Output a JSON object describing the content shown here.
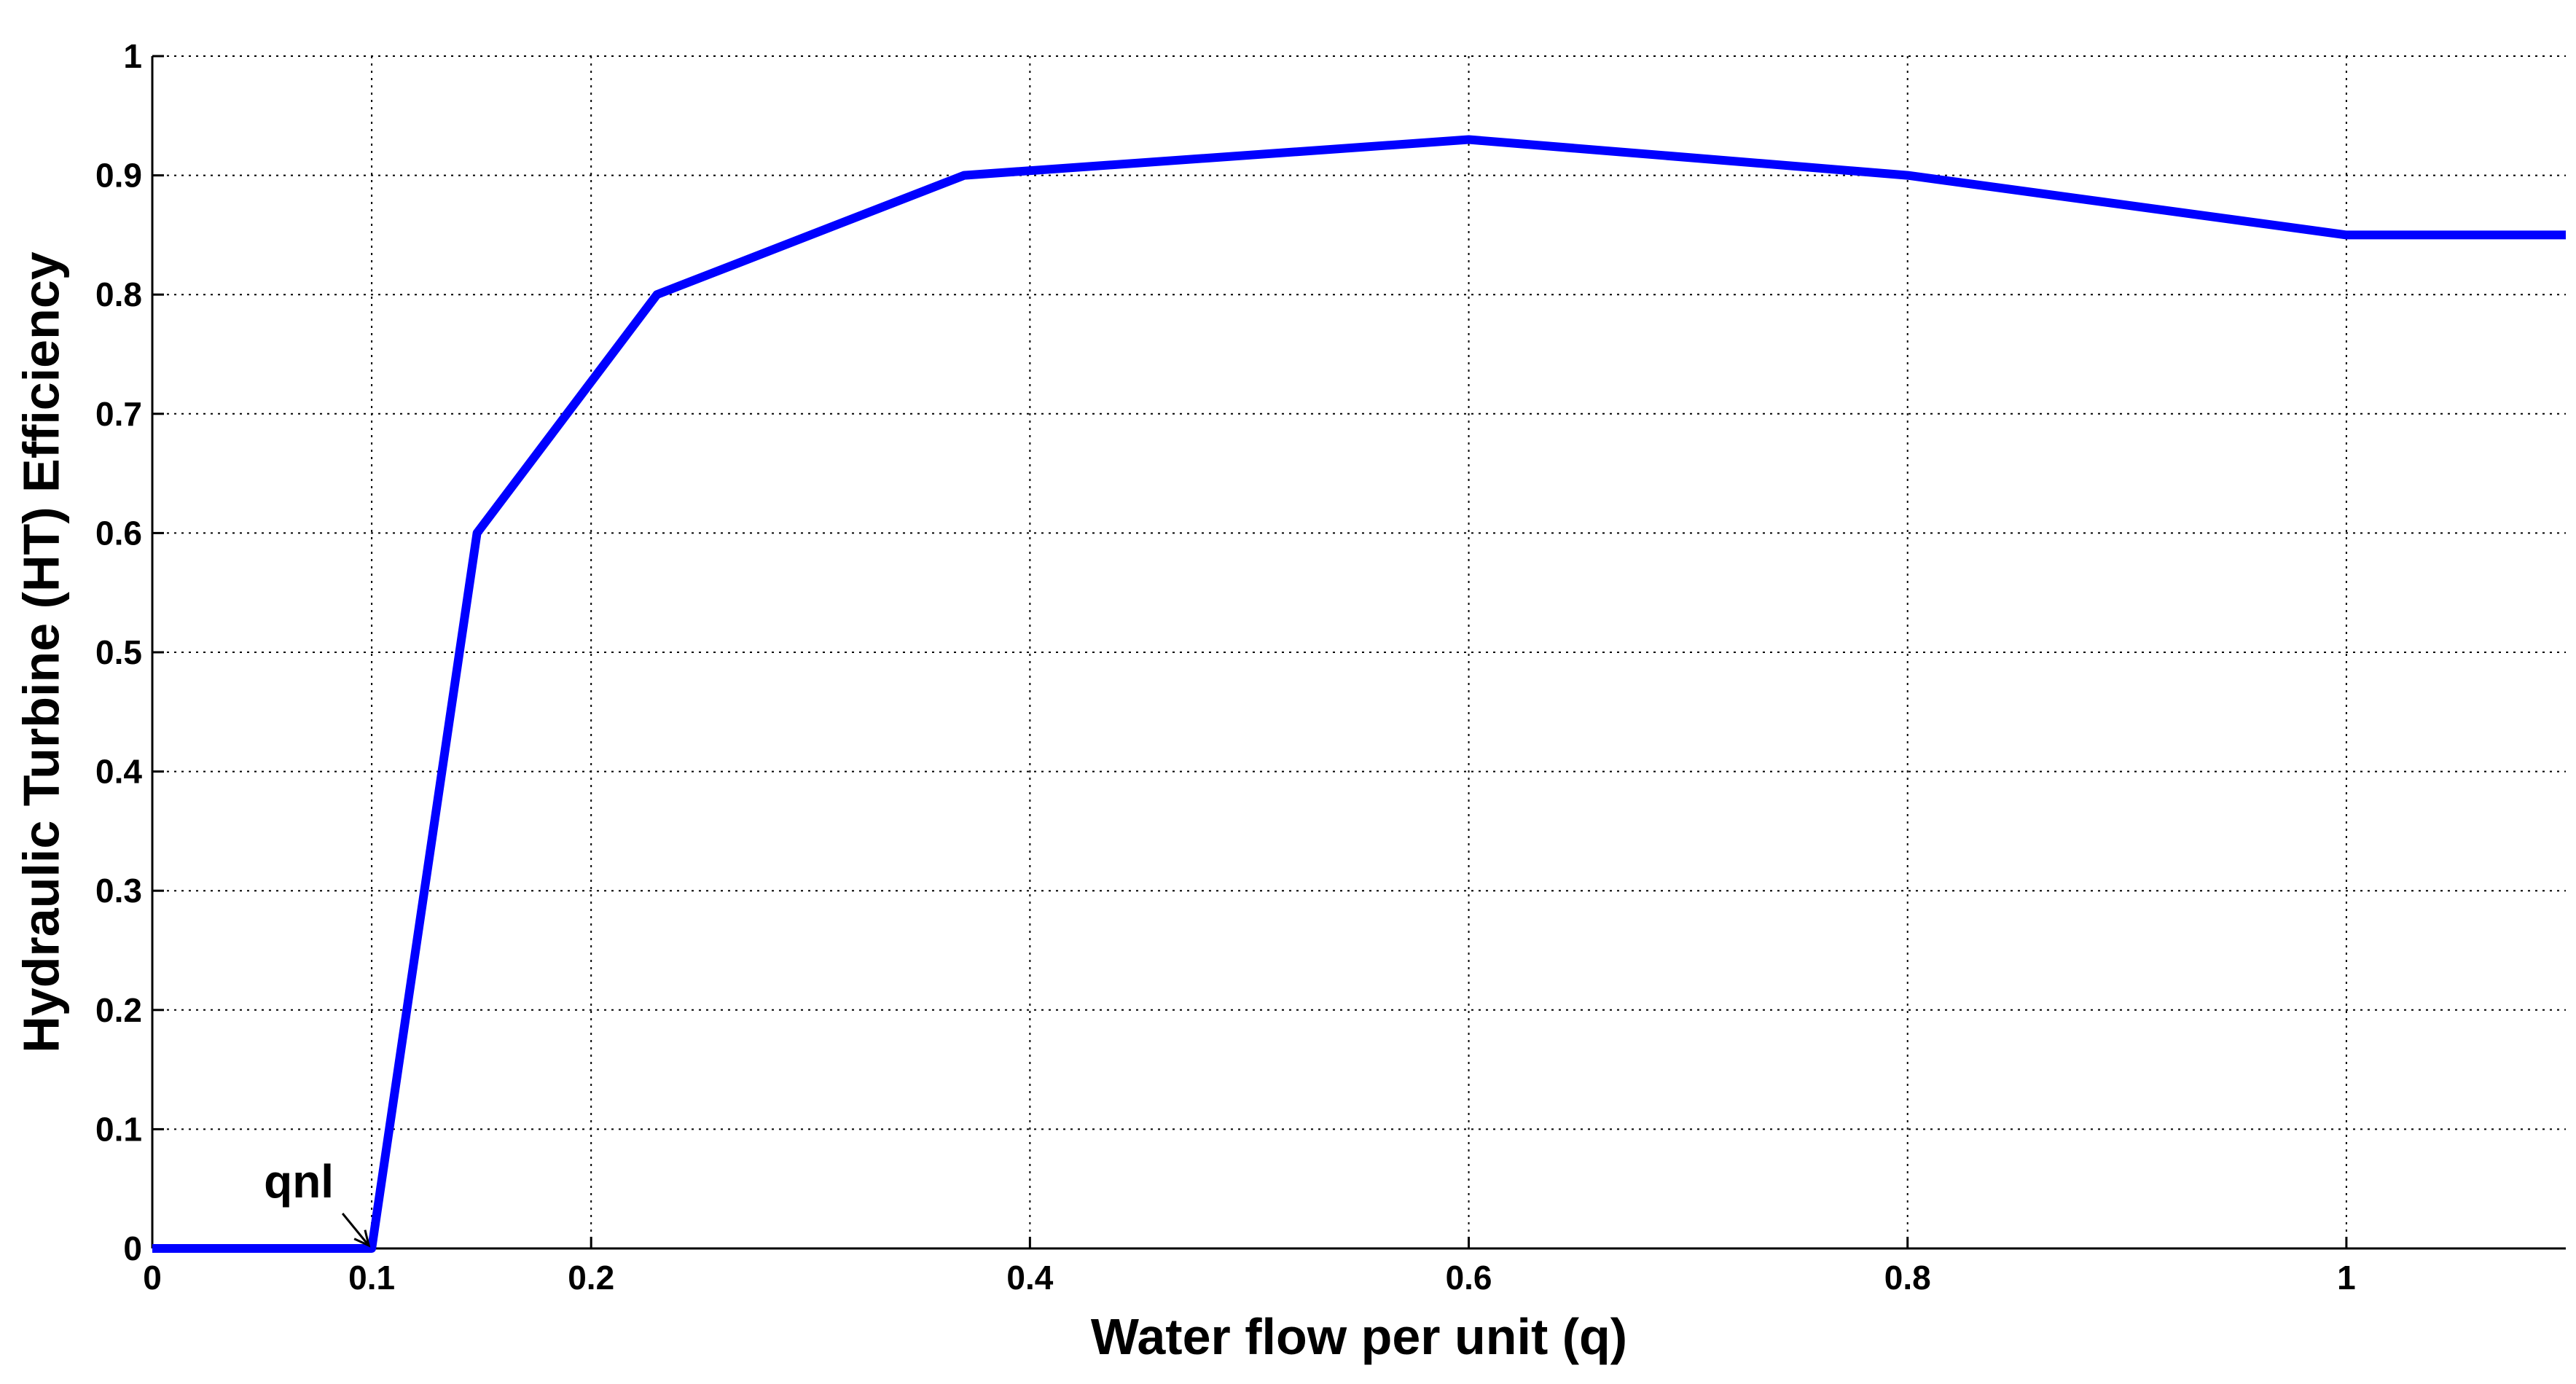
{
  "chart_data": {
    "type": "line",
    "xlabel": "Water flow per unit (q)",
    "ylabel": "Hydraulic Turbine (HT) Efficiency",
    "xlim": [
      0,
      1.1
    ],
    "ylim": [
      0,
      1
    ],
    "xticks": [
      0,
      0.1,
      0.2,
      0.4,
      0.6,
      0.8,
      1
    ],
    "xtick_labels": [
      "0",
      "0.1",
      "0.2",
      "0.4",
      "0.6",
      "0.8",
      "1"
    ],
    "yticks": [
      0,
      0.1,
      0.2,
      0.3,
      0.4,
      0.5,
      0.6,
      0.7,
      0.8,
      0.9,
      1
    ],
    "ytick_labels": [
      "0",
      "0.1",
      "0.2",
      "0.3",
      "0.4",
      "0.5",
      "0.6",
      "0.7",
      "0.8",
      "0.9",
      "1"
    ],
    "grid": true,
    "series": [
      {
        "color": "#0000ff",
        "x": [
          0,
          0.1,
          0.148,
          0.23,
          0.37,
          0.6,
          0.8,
          1.0,
          1.1
        ],
        "y": [
          0,
          0,
          0.6,
          0.8,
          0.9,
          0.93,
          0.9,
          0.85,
          0.85
        ]
      }
    ],
    "annotations": [
      {
        "text": "qnl",
        "x": 0.1,
        "y": 0
      }
    ]
  }
}
